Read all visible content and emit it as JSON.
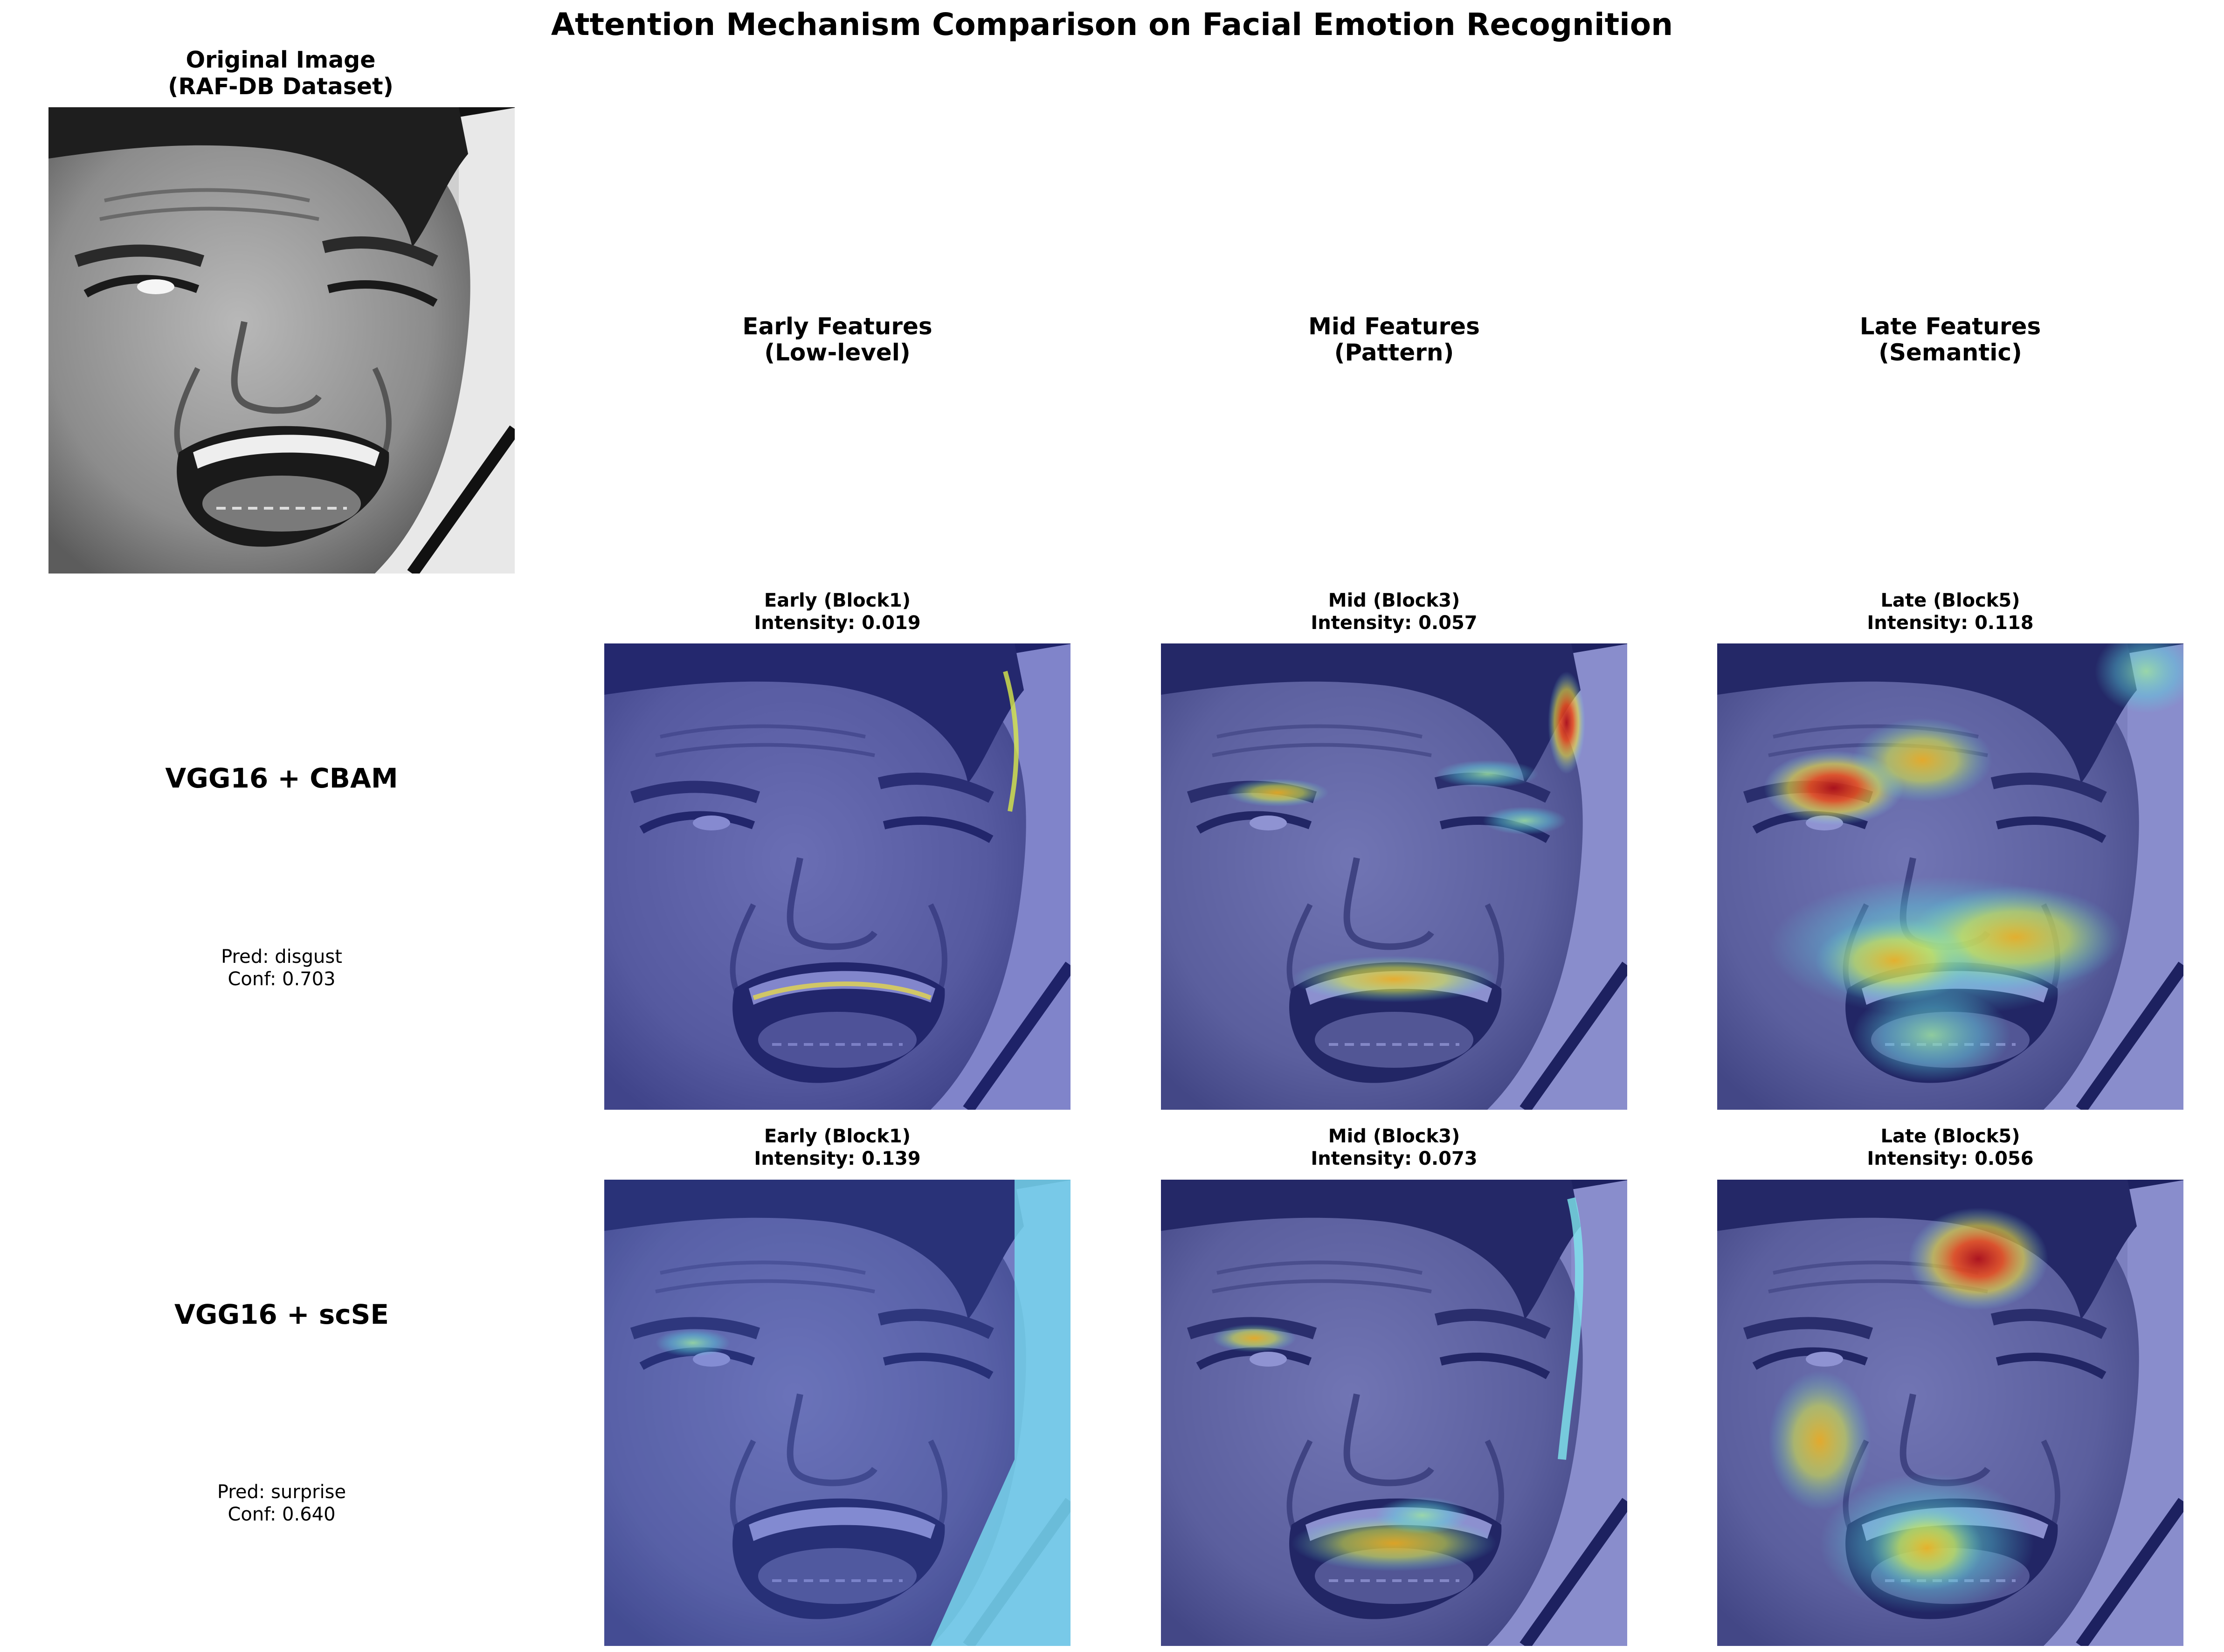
{
  "title": "Attention Mechanism Comparison on Facial Emotion Recognition",
  "original": {
    "title_line1": "Original Image",
    "title_line2": "(RAF-DB Dataset)"
  },
  "columns": [
    {
      "line1": "Early Features",
      "line2": "(Low-level)"
    },
    {
      "line1": "Mid Features",
      "line2": "(Pattern)"
    },
    {
      "line1": "Late Features",
      "line2": "(Semantic)"
    }
  ],
  "rows": [
    {
      "model": "VGG16 + CBAM",
      "pred": "Pred: disgust",
      "conf": "Conf: 0.703",
      "panels": [
        {
          "title": "Early (Block1)",
          "intensity": "Intensity: 0.019"
        },
        {
          "title": "Mid (Block3)",
          "intensity": "Intensity: 0.057"
        },
        {
          "title": "Late (Block5)",
          "intensity": "Intensity: 0.118"
        }
      ]
    },
    {
      "model": "VGG16 + scSE",
      "pred": "Pred: surprise",
      "conf": "Conf: 0.640",
      "panels": [
        {
          "title": "Early (Block1)",
          "intensity": "Intensity: 0.139"
        },
        {
          "title": "Mid (Block3)",
          "intensity": "Intensity: 0.073"
        },
        {
          "title": "Late (Block5)",
          "intensity": "Intensity: 0.056"
        }
      ]
    }
  ],
  "colors": {
    "overlay_base": "#3a3fa8",
    "heat_red": "#c0121a",
    "heat_yellow": "#f2e23a",
    "heat_cyan": "#7fe7ee"
  }
}
